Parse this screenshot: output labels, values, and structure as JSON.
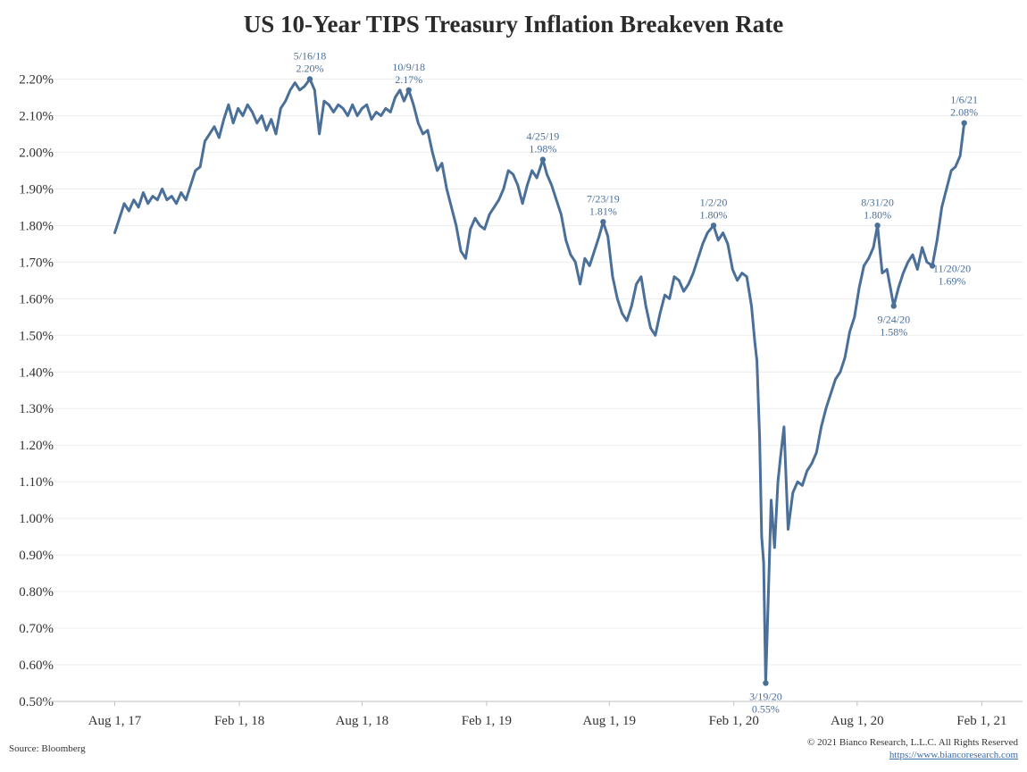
{
  "chart_data": {
    "type": "line",
    "title": "US 10-Year TIPS Treasury Inflation Breakeven Rate",
    "xlabel": "",
    "ylabel": "",
    "x_range": [
      "2017-07-01",
      "2021-02-15"
    ],
    "ylim": [
      0.5,
      2.25
    ],
    "y_ticks": [
      "0.50%",
      "0.60%",
      "0.70%",
      "0.80%",
      "0.90%",
      "1.00%",
      "1.10%",
      "1.20%",
      "1.30%",
      "1.40%",
      "1.50%",
      "1.60%",
      "1.70%",
      "1.80%",
      "1.90%",
      "2.00%",
      "2.10%",
      "2.20%"
    ],
    "x_ticks": [
      {
        "date": "2017-08-01",
        "label": "Aug 1, 17"
      },
      {
        "date": "2018-02-01",
        "label": "Feb 1, 18"
      },
      {
        "date": "2018-08-01",
        "label": "Aug 1, 18"
      },
      {
        "date": "2019-02-01",
        "label": "Feb 1, 19"
      },
      {
        "date": "2019-08-01",
        "label": "Aug 1, 19"
      },
      {
        "date": "2020-02-01",
        "label": "Feb 1, 20"
      },
      {
        "date": "2020-08-01",
        "label": "Aug 1, 20"
      },
      {
        "date": "2021-02-01",
        "label": "Feb 1, 21"
      }
    ],
    "grid": "horizontal",
    "series": [
      {
        "color": "#4a6f99",
        "points": [
          [
            "2017-08-01",
            1.78
          ],
          [
            "2017-08-08",
            1.82
          ],
          [
            "2017-08-15",
            1.86
          ],
          [
            "2017-08-22",
            1.84
          ],
          [
            "2017-08-29",
            1.87
          ],
          [
            "2017-09-05",
            1.85
          ],
          [
            "2017-09-12",
            1.89
          ],
          [
            "2017-09-19",
            1.86
          ],
          [
            "2017-09-26",
            1.88
          ],
          [
            "2017-10-03",
            1.87
          ],
          [
            "2017-10-10",
            1.9
          ],
          [
            "2017-10-17",
            1.87
          ],
          [
            "2017-10-24",
            1.88
          ],
          [
            "2017-10-31",
            1.86
          ],
          [
            "2017-11-07",
            1.89
          ],
          [
            "2017-11-14",
            1.87
          ],
          [
            "2017-11-21",
            1.91
          ],
          [
            "2017-11-28",
            1.95
          ],
          [
            "2017-12-05",
            1.96
          ],
          [
            "2017-12-12",
            2.03
          ],
          [
            "2017-12-19",
            2.05
          ],
          [
            "2017-12-26",
            2.07
          ],
          [
            "2018-01-02",
            2.04
          ],
          [
            "2018-01-09",
            2.09
          ],
          [
            "2018-01-16",
            2.13
          ],
          [
            "2018-01-23",
            2.08
          ],
          [
            "2018-01-30",
            2.12
          ],
          [
            "2018-02-06",
            2.1
          ],
          [
            "2018-02-13",
            2.13
          ],
          [
            "2018-02-20",
            2.11
          ],
          [
            "2018-02-27",
            2.08
          ],
          [
            "2018-03-06",
            2.1
          ],
          [
            "2018-03-13",
            2.06
          ],
          [
            "2018-03-20",
            2.09
          ],
          [
            "2018-03-27",
            2.05
          ],
          [
            "2018-04-03",
            2.12
          ],
          [
            "2018-04-10",
            2.14
          ],
          [
            "2018-04-17",
            2.17
          ],
          [
            "2018-04-24",
            2.19
          ],
          [
            "2018-05-01",
            2.17
          ],
          [
            "2018-05-08",
            2.18
          ],
          [
            "2018-05-16",
            2.2
          ],
          [
            "2018-05-23",
            2.17
          ],
          [
            "2018-05-30",
            2.05
          ],
          [
            "2018-06-06",
            2.14
          ],
          [
            "2018-06-13",
            2.13
          ],
          [
            "2018-06-20",
            2.11
          ],
          [
            "2018-06-27",
            2.13
          ],
          [
            "2018-07-04",
            2.12
          ],
          [
            "2018-07-11",
            2.1
          ],
          [
            "2018-07-18",
            2.13
          ],
          [
            "2018-07-25",
            2.1
          ],
          [
            "2018-08-01",
            2.12
          ],
          [
            "2018-08-08",
            2.13
          ],
          [
            "2018-08-15",
            2.09
          ],
          [
            "2018-08-22",
            2.11
          ],
          [
            "2018-08-29",
            2.1
          ],
          [
            "2018-09-05",
            2.12
          ],
          [
            "2018-09-12",
            2.11
          ],
          [
            "2018-09-19",
            2.15
          ],
          [
            "2018-09-26",
            2.17
          ],
          [
            "2018-10-02",
            2.14
          ],
          [
            "2018-10-09",
            2.17
          ],
          [
            "2018-10-16",
            2.13
          ],
          [
            "2018-10-23",
            2.08
          ],
          [
            "2018-10-30",
            2.05
          ],
          [
            "2018-11-06",
            2.06
          ],
          [
            "2018-11-13",
            2.0
          ],
          [
            "2018-11-20",
            1.95
          ],
          [
            "2018-11-27",
            1.97
          ],
          [
            "2018-12-04",
            1.9
          ],
          [
            "2018-12-11",
            1.85
          ],
          [
            "2018-12-18",
            1.8
          ],
          [
            "2018-12-25",
            1.73
          ],
          [
            "2019-01-01",
            1.71
          ],
          [
            "2019-01-08",
            1.79
          ],
          [
            "2019-01-15",
            1.82
          ],
          [
            "2019-01-22",
            1.8
          ],
          [
            "2019-01-29",
            1.79
          ],
          [
            "2019-02-05",
            1.83
          ],
          [
            "2019-02-12",
            1.85
          ],
          [
            "2019-02-19",
            1.87
          ],
          [
            "2019-02-26",
            1.9
          ],
          [
            "2019-03-05",
            1.95
          ],
          [
            "2019-03-12",
            1.94
          ],
          [
            "2019-03-19",
            1.91
          ],
          [
            "2019-03-26",
            1.86
          ],
          [
            "2019-04-02",
            1.91
          ],
          [
            "2019-04-09",
            1.95
          ],
          [
            "2019-04-16",
            1.93
          ],
          [
            "2019-04-25",
            1.98
          ],
          [
            "2019-05-01",
            1.94
          ],
          [
            "2019-05-08",
            1.91
          ],
          [
            "2019-05-15",
            1.87
          ],
          [
            "2019-05-22",
            1.83
          ],
          [
            "2019-05-29",
            1.76
          ],
          [
            "2019-06-05",
            1.72
          ],
          [
            "2019-06-12",
            1.7
          ],
          [
            "2019-06-19",
            1.64
          ],
          [
            "2019-06-26",
            1.71
          ],
          [
            "2019-07-03",
            1.69
          ],
          [
            "2019-07-10",
            1.73
          ],
          [
            "2019-07-17",
            1.77
          ],
          [
            "2019-07-23",
            1.81
          ],
          [
            "2019-07-30",
            1.77
          ],
          [
            "2019-08-06",
            1.66
          ],
          [
            "2019-08-13",
            1.6
          ],
          [
            "2019-08-20",
            1.56
          ],
          [
            "2019-08-27",
            1.54
          ],
          [
            "2019-09-03",
            1.58
          ],
          [
            "2019-09-10",
            1.64
          ],
          [
            "2019-09-17",
            1.66
          ],
          [
            "2019-09-24",
            1.58
          ],
          [
            "2019-10-01",
            1.52
          ],
          [
            "2019-10-08",
            1.5
          ],
          [
            "2019-10-15",
            1.56
          ],
          [
            "2019-10-22",
            1.61
          ],
          [
            "2019-10-29",
            1.6
          ],
          [
            "2019-11-05",
            1.66
          ],
          [
            "2019-11-12",
            1.65
          ],
          [
            "2019-11-19",
            1.62
          ],
          [
            "2019-11-26",
            1.64
          ],
          [
            "2019-12-03",
            1.67
          ],
          [
            "2019-12-10",
            1.71
          ],
          [
            "2019-12-17",
            1.75
          ],
          [
            "2019-12-24",
            1.78
          ],
          [
            "2020-01-02",
            1.8
          ],
          [
            "2020-01-09",
            1.76
          ],
          [
            "2020-01-16",
            1.78
          ],
          [
            "2020-01-23",
            1.75
          ],
          [
            "2020-01-30",
            1.68
          ],
          [
            "2020-02-06",
            1.65
          ],
          [
            "2020-02-13",
            1.67
          ],
          [
            "2020-02-20",
            1.66
          ],
          [
            "2020-02-27",
            1.58
          ],
          [
            "2020-03-03",
            1.48
          ],
          [
            "2020-03-06",
            1.43
          ],
          [
            "2020-03-10",
            1.22
          ],
          [
            "2020-03-13",
            0.95
          ],
          [
            "2020-03-16",
            0.88
          ],
          [
            "2020-03-19",
            0.55
          ],
          [
            "2020-03-23",
            0.8
          ],
          [
            "2020-03-27",
            1.05
          ],
          [
            "2020-04-01",
            0.92
          ],
          [
            "2020-04-06",
            1.1
          ],
          [
            "2020-04-10",
            1.17
          ],
          [
            "2020-04-15",
            1.25
          ],
          [
            "2020-04-21",
            0.97
          ],
          [
            "2020-04-28",
            1.07
          ],
          [
            "2020-05-05",
            1.1
          ],
          [
            "2020-05-12",
            1.09
          ],
          [
            "2020-05-19",
            1.13
          ],
          [
            "2020-05-26",
            1.15
          ],
          [
            "2020-06-02",
            1.18
          ],
          [
            "2020-06-09",
            1.25
          ],
          [
            "2020-06-16",
            1.3
          ],
          [
            "2020-06-23",
            1.34
          ],
          [
            "2020-06-30",
            1.38
          ],
          [
            "2020-07-07",
            1.4
          ],
          [
            "2020-07-14",
            1.44
          ],
          [
            "2020-07-21",
            1.51
          ],
          [
            "2020-07-28",
            1.55
          ],
          [
            "2020-08-04",
            1.63
          ],
          [
            "2020-08-11",
            1.69
          ],
          [
            "2020-08-18",
            1.71
          ],
          [
            "2020-08-25",
            1.74
          ],
          [
            "2020-08-31",
            1.8
          ],
          [
            "2020-09-07",
            1.67
          ],
          [
            "2020-09-14",
            1.68
          ],
          [
            "2020-09-24",
            1.58
          ],
          [
            "2020-10-01",
            1.63
          ],
          [
            "2020-10-08",
            1.67
          ],
          [
            "2020-10-15",
            1.7
          ],
          [
            "2020-10-22",
            1.72
          ],
          [
            "2020-10-29",
            1.68
          ],
          [
            "2020-11-05",
            1.74
          ],
          [
            "2020-11-12",
            1.7
          ],
          [
            "2020-11-20",
            1.69
          ],
          [
            "2020-11-27",
            1.76
          ],
          [
            "2020-12-04",
            1.85
          ],
          [
            "2020-12-11",
            1.9
          ],
          [
            "2020-12-18",
            1.95
          ],
          [
            "2020-12-24",
            1.96
          ],
          [
            "2020-12-31",
            1.99
          ],
          [
            "2021-01-06",
            2.08
          ]
        ]
      }
    ],
    "annotations": [
      {
        "date": "2018-05-16",
        "value": 2.2,
        "date_label": "5/16/18",
        "value_label": "2.20%",
        "pos": "above"
      },
      {
        "date": "2018-10-09",
        "value": 2.17,
        "date_label": "10/9/18",
        "value_label": "2.17%",
        "pos": "above"
      },
      {
        "date": "2019-04-25",
        "value": 1.98,
        "date_label": "4/25/19",
        "value_label": "1.98%",
        "pos": "above"
      },
      {
        "date": "2019-07-23",
        "value": 1.81,
        "date_label": "7/23/19",
        "value_label": "1.81%",
        "pos": "above"
      },
      {
        "date": "2020-01-02",
        "value": 1.8,
        "date_label": "1/2/20",
        "value_label": "1.80%",
        "pos": "above"
      },
      {
        "date": "2020-03-19",
        "value": 0.55,
        "date_label": "3/19/20",
        "value_label": "0.55%",
        "pos": "below"
      },
      {
        "date": "2020-08-31",
        "value": 1.8,
        "date_label": "8/31/20",
        "value_label": "1.80%",
        "pos": "above"
      },
      {
        "date": "2020-09-24",
        "value": 1.58,
        "date_label": "9/24/20",
        "value_label": "1.58%",
        "pos": "below"
      },
      {
        "date": "2020-11-20",
        "value": 1.69,
        "date_label": "11/20/20",
        "value_label": "1.69%",
        "pos": "right"
      },
      {
        "date": "2021-01-06",
        "value": 2.08,
        "date_label": "1/6/21",
        "value_label": "2.08%",
        "pos": "above"
      }
    ]
  },
  "footer": {
    "source": "Source: Bloomberg",
    "copyright": "© 2021 Bianco Research, L.L.C. All Rights Reserved",
    "url": "https://www.biancoresearch.com"
  }
}
